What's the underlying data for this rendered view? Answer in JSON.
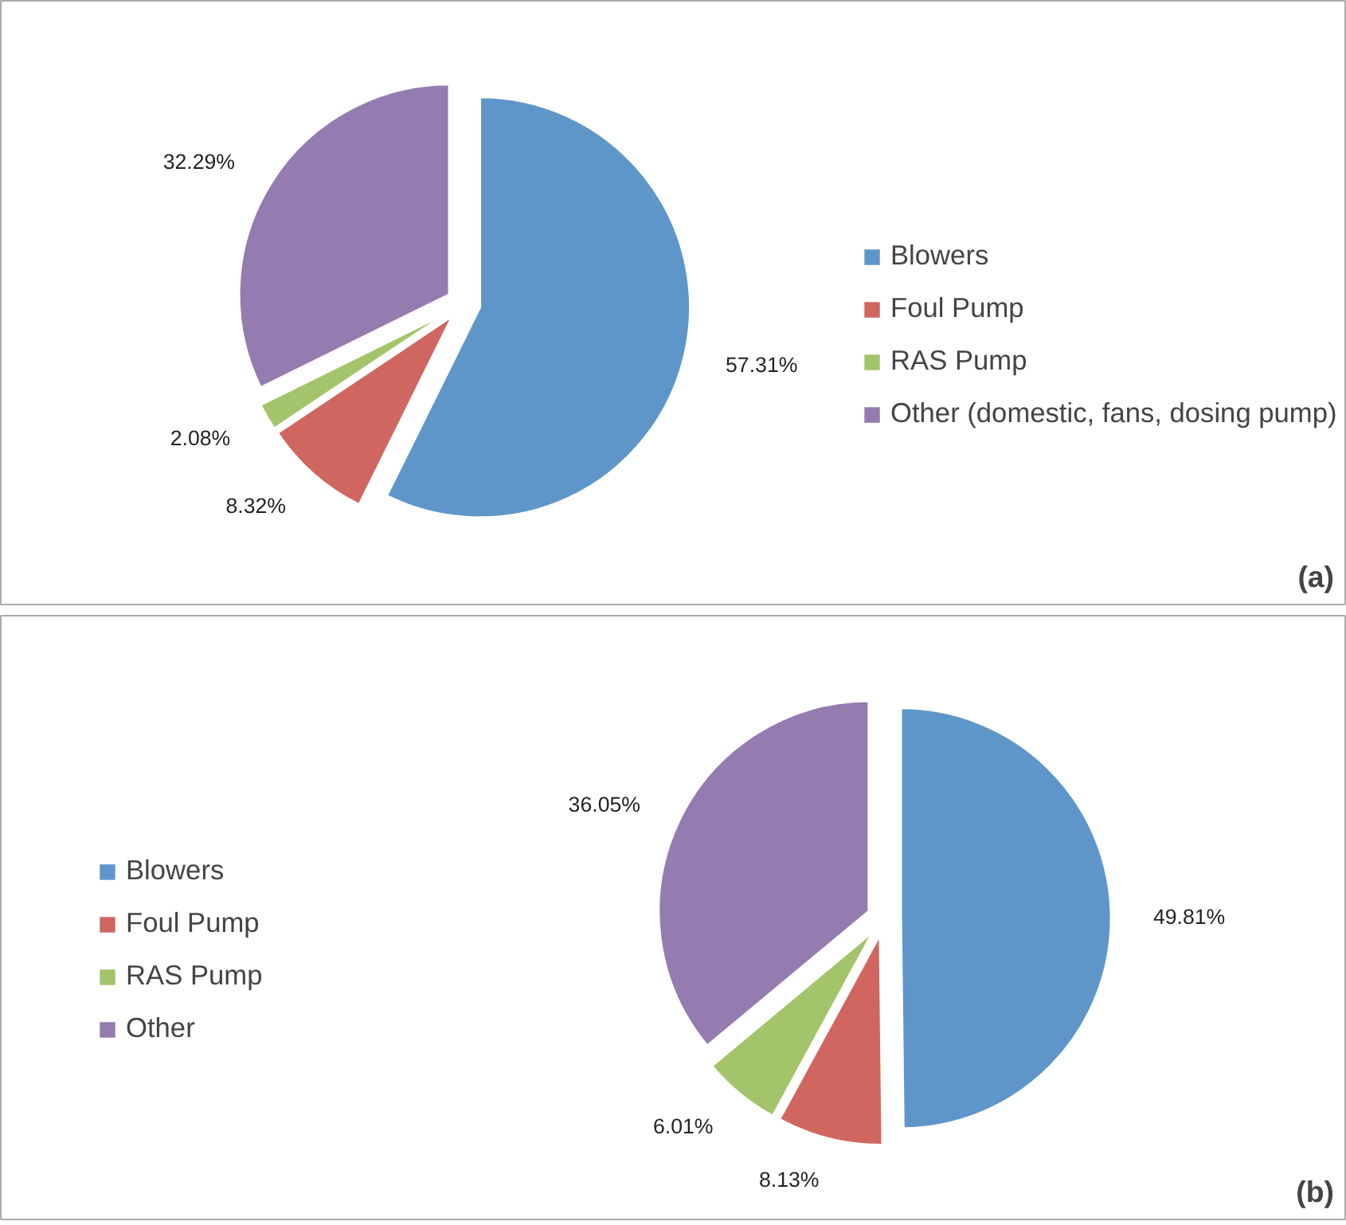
{
  "chart_data": [
    {
      "type": "pie",
      "categories": [
        "Blowers",
        "Foul Pump",
        "RAS Pump",
        "Other (domestic, fans, dosing pump)"
      ],
      "values": [
        57.31,
        8.32,
        2.08,
        32.29
      ],
      "colors": [
        "#5f96c9",
        "#cf6660",
        "#a3c46a",
        "#947bb0"
      ],
      "value_labels": [
        "57.31%",
        "8.32%",
        "2.08%",
        "32.29%"
      ],
      "legend": "right",
      "annotations": [
        "(a)"
      ]
    },
    {
      "type": "pie",
      "categories": [
        "Blowers",
        "Foul Pump",
        "RAS Pump",
        "Other"
      ],
      "values": [
        49.81,
        8.13,
        6.01,
        36.05
      ],
      "colors": [
        "#5f96c9",
        "#cf6660",
        "#a3c46a",
        "#947bb0"
      ],
      "value_labels": [
        "49.81%",
        "8.13%",
        "6.01%",
        "36.05%"
      ],
      "legend": "left",
      "annotations": [
        "(b)"
      ]
    }
  ]
}
